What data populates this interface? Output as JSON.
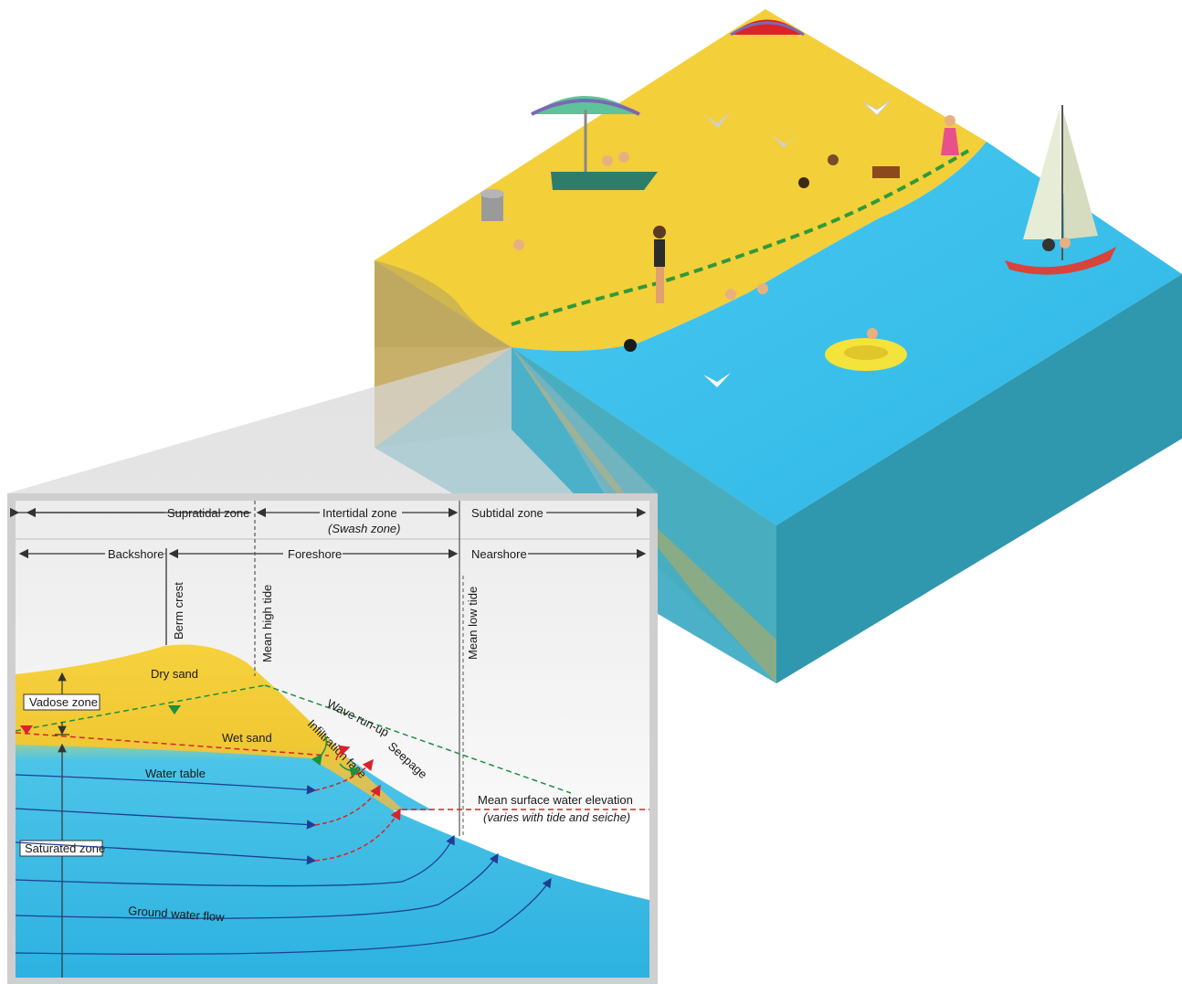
{
  "zones_row": {
    "supratidal": "Supratidal zone",
    "intertidal": "Intertidal zone",
    "swash": "(Swash zone)",
    "subtidal": "Subtidal zone"
  },
  "shore_row": {
    "backshore": "Backshore",
    "foreshore": "Foreshore",
    "nearshore": "Nearshore"
  },
  "markers": {
    "berm_crest": "Berm crest",
    "mean_high_tide": "Mean high tide",
    "mean_low_tide": "Mean low tide"
  },
  "labels": {
    "dry_sand": "Dry sand",
    "wet_sand": "Wet sand",
    "vadose_zone": "Vadose zone",
    "saturated_zone": "Saturated zone",
    "water_table": "Water table",
    "wave_runup": "Wave run-up",
    "infiltration_face": "Infiltration face",
    "seepage": "Seepage",
    "mean_surface": "Mean surface water elevation",
    "mean_surface_note": "(varies with tide and seiche)",
    "ground_water_flow": "Ground water flow"
  },
  "colors": {
    "sand": "#f3cf3a",
    "sand_side": "#c9b06a",
    "water_top": "#3fc1ec",
    "water_side": "#35a6bf",
    "saturated": "#3ec3ee",
    "flow_lines": "#1f3f93",
    "green_dash": "#1e8f3e",
    "red_dash": "#d8232a"
  }
}
